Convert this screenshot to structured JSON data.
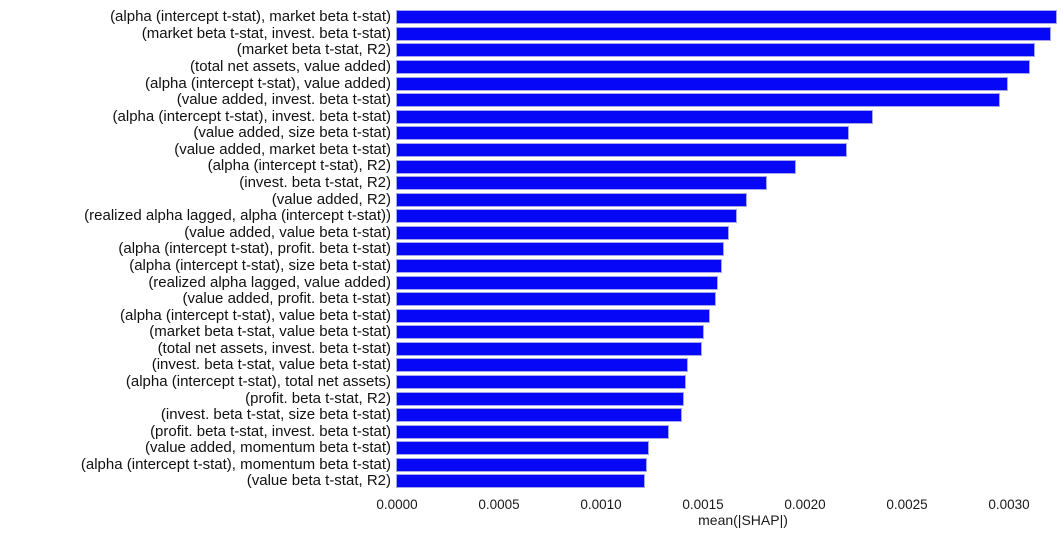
{
  "chart_data": {
    "type": "bar",
    "orientation": "horizontal",
    "title": "",
    "xlabel": "mean(|SHAP|)",
    "ylabel": "",
    "xlim": [
      0,
      0.00326
    ],
    "grid": false,
    "legend": null,
    "bar_color": "#0707f7",
    "bar_edge_color": "#a6a6ec",
    "xticks": [
      {
        "label": "0.0000",
        "value": 0.0
      },
      {
        "label": "0.0005",
        "value": 0.0005
      },
      {
        "label": "0.0010",
        "value": 0.001
      },
      {
        "label": "0.0015",
        "value": 0.0015
      },
      {
        "label": "0.0020",
        "value": 0.002
      },
      {
        "label": "0.0025",
        "value": 0.0025
      },
      {
        "label": "0.0030",
        "value": 0.003
      }
    ],
    "categories": [
      "(alpha (intercept t-stat), market beta t-stat)",
      "(market beta t-stat, invest. beta t-stat)",
      "(market beta t-stat, R2)",
      "(total net assets, value added)",
      "(alpha (intercept t-stat), value added)",
      "(value added, invest. beta t-stat)",
      "(alpha (intercept t-stat), invest. beta t-stat)",
      "(value added, size beta t-stat)",
      "(value added, market beta t-stat)",
      "(alpha (intercept t-stat), R2)",
      "(invest. beta t-stat, R2)",
      "(value added, R2)",
      "(realized alpha lagged, alpha (intercept t-stat))",
      "(value added, value beta t-stat)",
      "(alpha (intercept t-stat), profit. beta t-stat)",
      "(alpha (intercept t-stat), size beta t-stat)",
      "(realized alpha lagged, value added)",
      "(value added, profit. beta t-stat)",
      "(alpha (intercept t-stat), value beta t-stat)",
      "(market beta t-stat, value beta t-stat)",
      "(total net assets, invest. beta t-stat)",
      "(invest. beta t-stat, value beta t-stat)",
      "(alpha (intercept t-stat), total net assets)",
      "(profit. beta t-stat, R2)",
      "(invest. beta t-stat, size beta t-stat)",
      "(profit. beta t-stat, invest. beta t-stat)",
      "(value added, momentum beta t-stat)",
      "(alpha (intercept t-stat), momentum beta t-stat)",
      "(value beta t-stat, R2)"
    ],
    "values": [
      0.00324,
      0.00321,
      0.00313,
      0.00311,
      0.003,
      0.00296,
      0.00234,
      0.00222,
      0.00221,
      0.00196,
      0.00182,
      0.00172,
      0.00167,
      0.00163,
      0.00161,
      0.0016,
      0.00158,
      0.00157,
      0.00154,
      0.00151,
      0.0015,
      0.00143,
      0.00142,
      0.00141,
      0.0014,
      0.00134,
      0.00124,
      0.00123,
      0.00122
    ]
  }
}
